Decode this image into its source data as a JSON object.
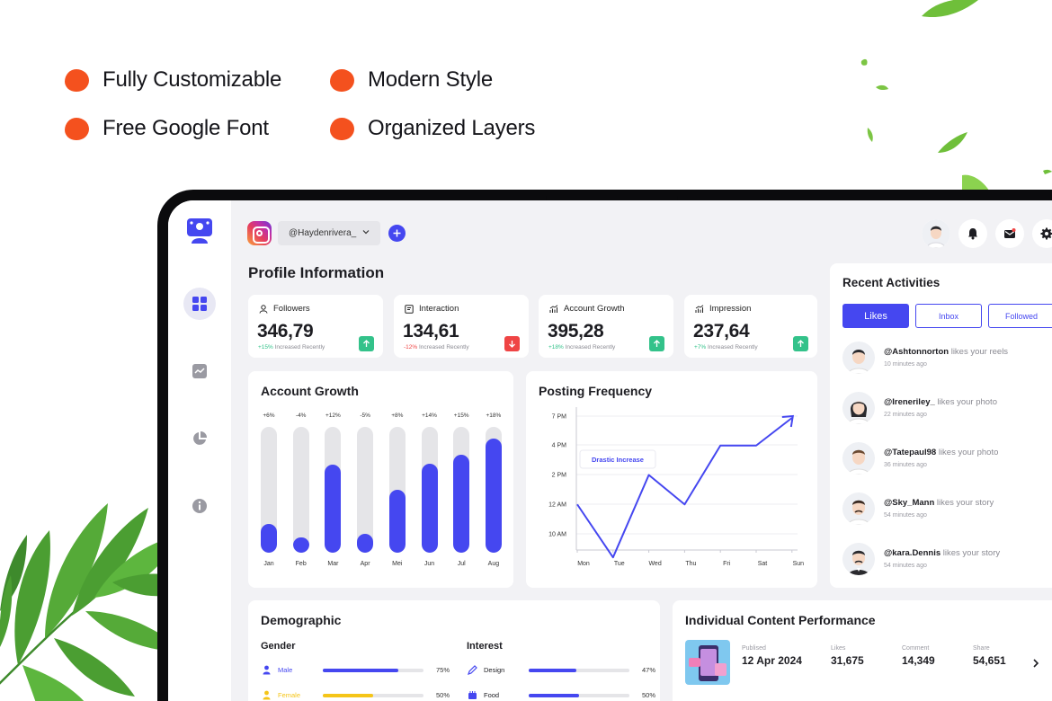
{
  "features": [
    "Fully Customizable",
    "Modern Style",
    "Free Google Font",
    "Organized Layers"
  ],
  "colors": {
    "accent": "#4547f0",
    "feature_dot": "#f4511e",
    "positive": "#33c28a",
    "negative": "#ef4444",
    "female": "#f5c518"
  },
  "topbar": {
    "account": "@Haydenrivera_",
    "icons": [
      "instagram-icon",
      "chevron-down-icon",
      "plus-icon",
      "bell-icon",
      "mail-icon",
      "gear-icon"
    ]
  },
  "profile": {
    "title": "Profile Information"
  },
  "stats": [
    {
      "label": "Followers",
      "value": "346,79",
      "change": "+15%",
      "note": "Increased Recently",
      "trend": "up"
    },
    {
      "label": "Interaction",
      "value": "134,61",
      "change": "-12%",
      "note": "Increased Recently",
      "trend": "down"
    },
    {
      "label": "Account Growth",
      "value": "395,28",
      "change": "+18%",
      "note": "Increased Recently",
      "trend": "up"
    },
    {
      "label": "Impression",
      "value": "237,64",
      "change": "+7%",
      "note": "Increased Recently",
      "trend": "up"
    }
  ],
  "account_growth": {
    "title": "Account Growth"
  },
  "posting_frequency": {
    "title": "Posting Frequency",
    "callout": "Drastic Increase"
  },
  "chart_data": [
    {
      "type": "bar",
      "title": "Account Growth",
      "categories": [
        "Jan",
        "Feb",
        "Mar",
        "Apr",
        "Mei",
        "Jun",
        "Jul",
        "Aug"
      ],
      "labels": [
        "+6%",
        "-4%",
        "+12%",
        "-5%",
        "+8%",
        "+14%",
        "+15%",
        "+18%"
      ],
      "values": [
        23,
        12,
        70,
        15,
        50,
        71,
        78,
        91
      ],
      "ylim": [
        0,
        100
      ]
    },
    {
      "type": "line",
      "title": "Posting Frequency",
      "categories": [
        "Mon",
        "Tue",
        "Wed",
        "Thu",
        "Fri",
        "Sat",
        "Sun"
      ],
      "y_ticks": [
        "7 PM",
        "4 PM",
        "2 PM",
        "12 AM",
        "10 AM"
      ],
      "values": [
        2.0,
        0.2,
        3.0,
        2.0,
        4.0,
        4.0,
        5.0
      ],
      "annotation": "Drastic Increase",
      "grid": true
    }
  ],
  "recent_activities": {
    "title": "Recent Activities",
    "tabs": [
      "Likes",
      "Inbox",
      "Followed"
    ],
    "items": [
      {
        "user": "@Ashtonnorton",
        "action": "likes your reels",
        "time": "10 minutes ago"
      },
      {
        "user": "@Ireneriley_",
        "action": "likes your photo",
        "time": "22 minutes ago"
      },
      {
        "user": "@Tatepaul98",
        "action": "likes your photo",
        "time": "36 minutes ago"
      },
      {
        "user": "@Sky_Mann",
        "action": "likes your story",
        "time": "54 minutes ago"
      },
      {
        "user": "@kara.Dennis",
        "action": "likes your story",
        "time": "54 minutes ago"
      }
    ]
  },
  "demographic": {
    "title": "Demographic",
    "gender": {
      "title": "Gender",
      "rows": [
        {
          "name": "Male",
          "pct": "75%",
          "value": 75,
          "color": "#4547f0"
        },
        {
          "name": "Female",
          "pct": "50%",
          "value": 50,
          "color": "#f5c518"
        }
      ]
    },
    "interest": {
      "title": "Interest",
      "rows": [
        {
          "name": "Design",
          "pct": "47%",
          "value": 47,
          "color": "#4547f0"
        },
        {
          "name": "Food",
          "pct": "50%",
          "value": 50,
          "color": "#4547f0"
        }
      ]
    }
  },
  "content_performance": {
    "title": "Individual Content Performance",
    "published_label": "Publised",
    "published": "12 Apr 2024",
    "likes_label": "Likes",
    "likes": "31,675",
    "comment_label": "Comment",
    "comment": "14,349",
    "share_label": "Share",
    "share": "54,651"
  }
}
